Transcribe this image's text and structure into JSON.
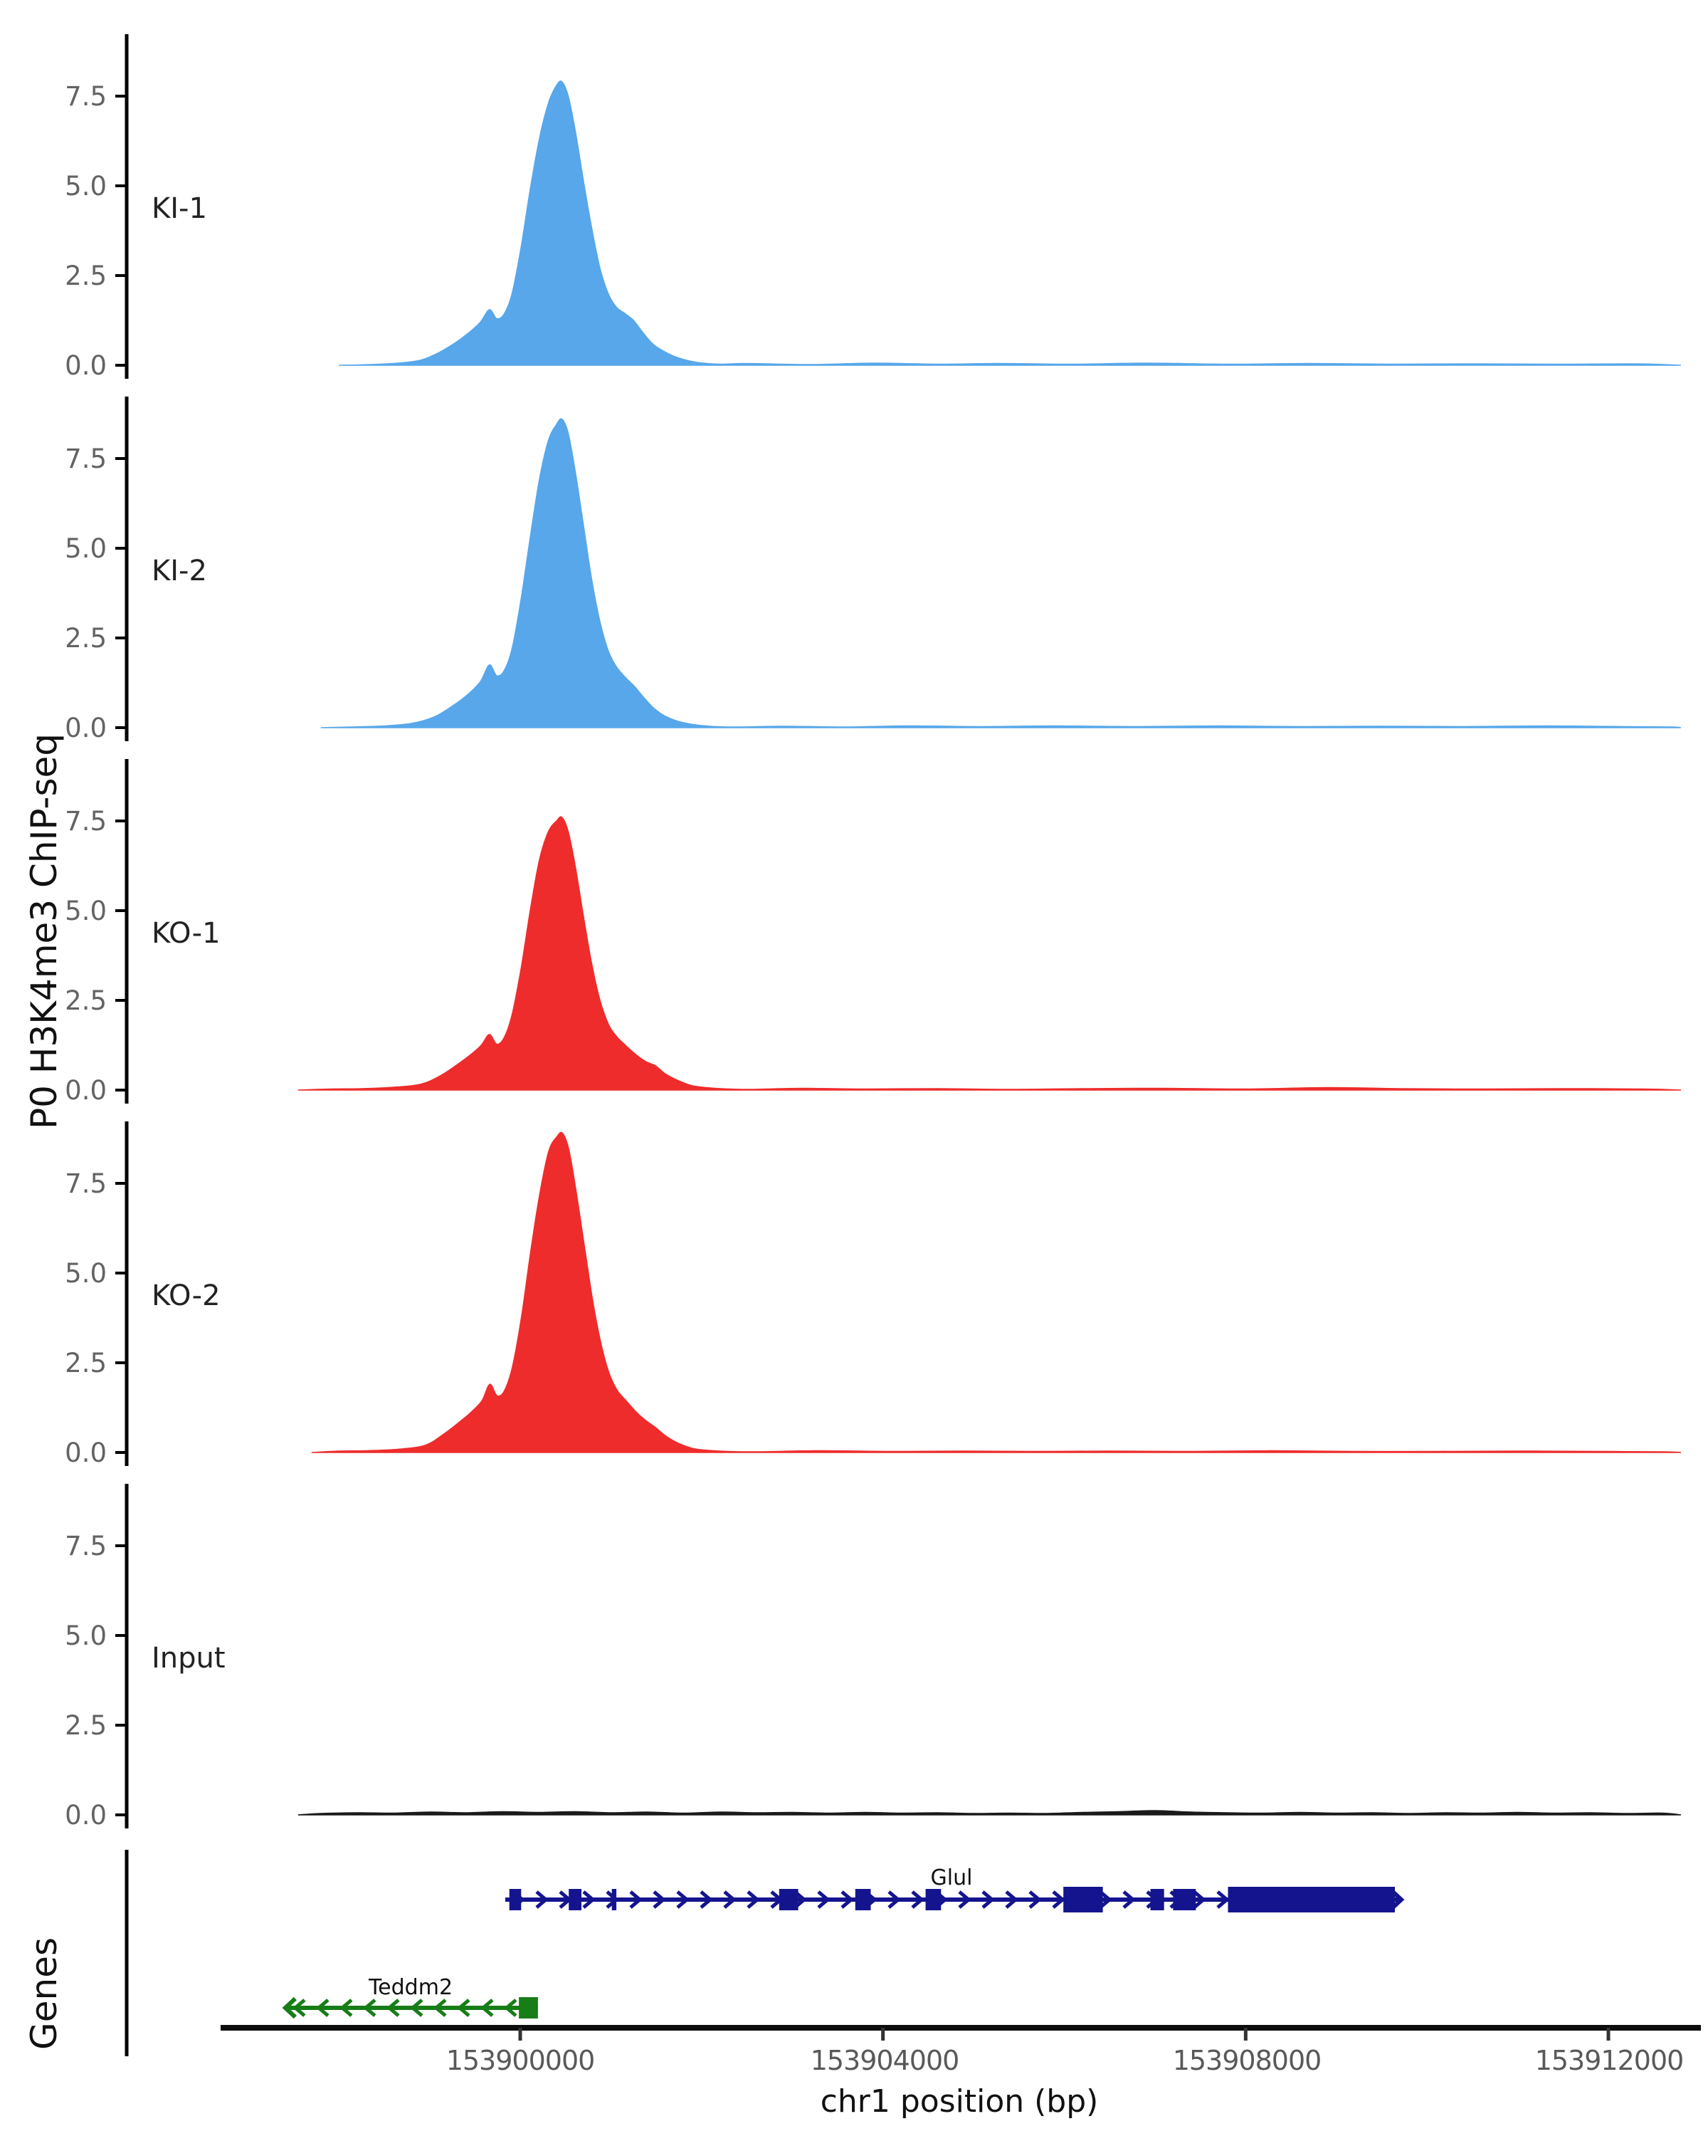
{
  "figure": {
    "ylabel_tracks": "P0 H3K4me3 ChIP-seq",
    "ylabel_genes": "Genes",
    "xlabel": "chr1 position (bp)"
  },
  "chart_data": {
    "type": "area",
    "title": "",
    "xlabel": "chr1 position (bp)",
    "ylabel": "P0 H3K4me3 ChIP-seq",
    "x_axis": {
      "chromosome": "chr1",
      "range_bp": [
        153896700,
        153913050
      ],
      "ticks_bp": [
        153900000,
        153904000,
        153908000,
        153912000
      ],
      "tick_labels": [
        "153900000",
        "153904000",
        "153908000",
        "153912000"
      ]
    },
    "y_axis": {
      "ticks": [
        0.0,
        2.5,
        5.0,
        7.5
      ],
      "tick_labels": [
        "0.0",
        "2.5",
        "5.0",
        "7.5"
      ],
      "ylim": [
        0,
        9.3
      ]
    },
    "colors": {
      "ki_fill": "#57a7ea",
      "ko_fill": "#ee2c2c",
      "input_fill": "#1a1a1a",
      "glul_gene": "#14148f",
      "teddm2_gene": "#177d17",
      "axis": "#000000",
      "tick_text": "#595959"
    },
    "tracks": [
      {
        "label": "KI-1",
        "color": "#57a7ea",
        "peak_summit_bp": 153900460,
        "peak_max": 7.9,
        "profile": [
          [
            153898000,
            0
          ],
          [
            153898350,
            0.02
          ],
          [
            153898650,
            0.06
          ],
          [
            153898900,
            0.14
          ],
          [
            153899100,
            0.35
          ],
          [
            153899280,
            0.62
          ],
          [
            153899430,
            0.9
          ],
          [
            153899560,
            1.2
          ],
          [
            153899660,
            1.55
          ],
          [
            153899740,
            1.3
          ],
          [
            153899820,
            1.42
          ],
          [
            153899910,
            2.0
          ],
          [
            153900010,
            3.3
          ],
          [
            153900110,
            4.9
          ],
          [
            153900210,
            6.3
          ],
          [
            153900310,
            7.3
          ],
          [
            153900400,
            7.8
          ],
          [
            153900460,
            7.9
          ],
          [
            153900530,
            7.5
          ],
          [
            153900610,
            6.5
          ],
          [
            153900700,
            5.1
          ],
          [
            153900790,
            3.8
          ],
          [
            153900880,
            2.7
          ],
          [
            153900970,
            2.0
          ],
          [
            153901060,
            1.62
          ],
          [
            153901150,
            1.45
          ],
          [
            153901250,
            1.25
          ],
          [
            153901350,
            0.92
          ],
          [
            153901460,
            0.6
          ],
          [
            153901590,
            0.38
          ],
          [
            153901750,
            0.2
          ],
          [
            153901950,
            0.08
          ],
          [
            153902200,
            0.03
          ],
          [
            153902500,
            0.05
          ],
          [
            153903200,
            0.02
          ],
          [
            153903900,
            0.06
          ],
          [
            153904600,
            0.03
          ],
          [
            153905300,
            0.05
          ],
          [
            153906100,
            0.03
          ],
          [
            153906900,
            0.06
          ],
          [
            153907800,
            0.03
          ],
          [
            153908700,
            0.05
          ],
          [
            153909600,
            0.03
          ],
          [
            153910500,
            0.04
          ],
          [
            153911400,
            0.03
          ],
          [
            153912300,
            0.04
          ],
          [
            153912800,
            0
          ]
        ]
      },
      {
        "label": "KI-2",
        "color": "#57a7ea",
        "peak_summit_bp": 153900460,
        "peak_max": 8.6,
        "profile": [
          [
            153897800,
            0
          ],
          [
            153898150,
            0.02
          ],
          [
            153898500,
            0.05
          ],
          [
            153898800,
            0.12
          ],
          [
            153899050,
            0.3
          ],
          [
            153899250,
            0.6
          ],
          [
            153899420,
            0.92
          ],
          [
            153899560,
            1.28
          ],
          [
            153899660,
            1.75
          ],
          [
            153899740,
            1.45
          ],
          [
            153899820,
            1.58
          ],
          [
            153899910,
            2.2
          ],
          [
            153900010,
            3.6
          ],
          [
            153900110,
            5.3
          ],
          [
            153900210,
            6.9
          ],
          [
            153900310,
            8.0
          ],
          [
            153900400,
            8.45
          ],
          [
            153900460,
            8.6
          ],
          [
            153900530,
            8.2
          ],
          [
            153900610,
            7.1
          ],
          [
            153900700,
            5.6
          ],
          [
            153900790,
            4.1
          ],
          [
            153900880,
            2.95
          ],
          [
            153900970,
            2.15
          ],
          [
            153901060,
            1.7
          ],
          [
            153901160,
            1.4
          ],
          [
            153901260,
            1.15
          ],
          [
            153901360,
            0.85
          ],
          [
            153901470,
            0.55
          ],
          [
            153901600,
            0.32
          ],
          [
            153901780,
            0.15
          ],
          [
            153902000,
            0.06
          ],
          [
            153902300,
            0.02
          ],
          [
            153902900,
            0.04
          ],
          [
            153903600,
            0.02
          ],
          [
            153904300,
            0.05
          ],
          [
            153905100,
            0.03
          ],
          [
            153905900,
            0.05
          ],
          [
            153906800,
            0.03
          ],
          [
            153907700,
            0.05
          ],
          [
            153908600,
            0.03
          ],
          [
            153909500,
            0.04
          ],
          [
            153910400,
            0.03
          ],
          [
            153911300,
            0.05
          ],
          [
            153912200,
            0.03
          ],
          [
            153912700,
            0.02
          ],
          [
            153912800,
            0
          ]
        ]
      },
      {
        "label": "KO-1",
        "color": "#ee2c2c",
        "peak_summit_bp": 153900460,
        "peak_max": 7.6,
        "profile": [
          [
            153897550,
            0
          ],
          [
            153897900,
            0.03
          ],
          [
            153898250,
            0.04
          ],
          [
            153898600,
            0.08
          ],
          [
            153898900,
            0.16
          ],
          [
            153899120,
            0.4
          ],
          [
            153899300,
            0.7
          ],
          [
            153899450,
            0.98
          ],
          [
            153899570,
            1.25
          ],
          [
            153899660,
            1.55
          ],
          [
            153899740,
            1.28
          ],
          [
            153899820,
            1.45
          ],
          [
            153899910,
            2.1
          ],
          [
            153900010,
            3.4
          ],
          [
            153900110,
            5.0
          ],
          [
            153900210,
            6.4
          ],
          [
            153900310,
            7.2
          ],
          [
            153900400,
            7.5
          ],
          [
            153900460,
            7.6
          ],
          [
            153900530,
            7.2
          ],
          [
            153900610,
            6.2
          ],
          [
            153900700,
            4.8
          ],
          [
            153900790,
            3.5
          ],
          [
            153900880,
            2.5
          ],
          [
            153900970,
            1.85
          ],
          [
            153901060,
            1.5
          ],
          [
            153901160,
            1.25
          ],
          [
            153901270,
            1.0
          ],
          [
            153901380,
            0.8
          ],
          [
            153901490,
            0.68
          ],
          [
            153901600,
            0.45
          ],
          [
            153901730,
            0.28
          ],
          [
            153901900,
            0.12
          ],
          [
            153902150,
            0.05
          ],
          [
            153902500,
            0.02
          ],
          [
            153903100,
            0.05
          ],
          [
            153903800,
            0.03
          ],
          [
            153904600,
            0.04
          ],
          [
            153905400,
            0.02
          ],
          [
            153906200,
            0.04
          ],
          [
            153907100,
            0.05
          ],
          [
            153908000,
            0.03
          ],
          [
            153908900,
            0.07
          ],
          [
            153909700,
            0.04
          ],
          [
            153910600,
            0.03
          ],
          [
            153911500,
            0.04
          ],
          [
            153912400,
            0.03
          ],
          [
            153912800,
            0
          ]
        ]
      },
      {
        "label": "KO-2",
        "color": "#ee2c2c",
        "peak_summit_bp": 153900465,
        "peak_max": 8.9,
        "profile": [
          [
            153897700,
            0
          ],
          [
            153898000,
            0.04
          ],
          [
            153898300,
            0.05
          ],
          [
            153898650,
            0.09
          ],
          [
            153898950,
            0.2
          ],
          [
            153899150,
            0.5
          ],
          [
            153899330,
            0.85
          ],
          [
            153899470,
            1.15
          ],
          [
            153899580,
            1.45
          ],
          [
            153899665,
            1.9
          ],
          [
            153899745,
            1.58
          ],
          [
            153899825,
            1.72
          ],
          [
            153899915,
            2.4
          ],
          [
            153900015,
            3.8
          ],
          [
            153900115,
            5.6
          ],
          [
            153900215,
            7.2
          ],
          [
            153900315,
            8.4
          ],
          [
            153900405,
            8.8
          ],
          [
            153900465,
            8.9
          ],
          [
            153900535,
            8.45
          ],
          [
            153900615,
            7.3
          ],
          [
            153900705,
            5.8
          ],
          [
            153900795,
            4.3
          ],
          [
            153900885,
            3.1
          ],
          [
            153900975,
            2.25
          ],
          [
            153901065,
            1.75
          ],
          [
            153901165,
            1.45
          ],
          [
            153901270,
            1.15
          ],
          [
            153901380,
            0.9
          ],
          [
            153901490,
            0.7
          ],
          [
            153901610,
            0.45
          ],
          [
            153901750,
            0.25
          ],
          [
            153901930,
            0.1
          ],
          [
            153902200,
            0.04
          ],
          [
            153902600,
            0.02
          ],
          [
            153903300,
            0.05
          ],
          [
            153904100,
            0.03
          ],
          [
            153904900,
            0.04
          ],
          [
            153905700,
            0.03
          ],
          [
            153906500,
            0.04
          ],
          [
            153907400,
            0.03
          ],
          [
            153908300,
            0.05
          ],
          [
            153909200,
            0.03
          ],
          [
            153910100,
            0.03
          ],
          [
            153911000,
            0.04
          ],
          [
            153911900,
            0.03
          ],
          [
            153912600,
            0.02
          ],
          [
            153912800,
            0
          ]
        ]
      },
      {
        "label": "Input",
        "color": "#1a1a1a",
        "peak_summit_bp": 153907000,
        "peak_max": 0.12,
        "profile": [
          [
            153897550,
            0
          ],
          [
            153897800,
            0.04
          ],
          [
            153898200,
            0.06
          ],
          [
            153898600,
            0.05
          ],
          [
            153899000,
            0.08
          ],
          [
            153899400,
            0.06
          ],
          [
            153899800,
            0.09
          ],
          [
            153900200,
            0.07
          ],
          [
            153900600,
            0.09
          ],
          [
            153901000,
            0.06
          ],
          [
            153901400,
            0.08
          ],
          [
            153901800,
            0.05
          ],
          [
            153902200,
            0.08
          ],
          [
            153902600,
            0.06
          ],
          [
            153903000,
            0.07
          ],
          [
            153903400,
            0.05
          ],
          [
            153903800,
            0.07
          ],
          [
            153904200,
            0.05
          ],
          [
            153904600,
            0.06
          ],
          [
            153905000,
            0.04
          ],
          [
            153905400,
            0.05
          ],
          [
            153905800,
            0.04
          ],
          [
            153906200,
            0.07
          ],
          [
            153906600,
            0.09
          ],
          [
            153907000,
            0.12
          ],
          [
            153907400,
            0.08
          ],
          [
            153907800,
            0.06
          ],
          [
            153908200,
            0.05
          ],
          [
            153908600,
            0.07
          ],
          [
            153909000,
            0.05
          ],
          [
            153909400,
            0.06
          ],
          [
            153909800,
            0.04
          ],
          [
            153910200,
            0.06
          ],
          [
            153910600,
            0.05
          ],
          [
            153911000,
            0.07
          ],
          [
            153911400,
            0.05
          ],
          [
            153911800,
            0.06
          ],
          [
            153912200,
            0.04
          ],
          [
            153912600,
            0.05
          ],
          [
            153912800,
            0
          ]
        ]
      }
    ],
    "genes": [
      {
        "name": "Glul",
        "strand": "+",
        "color": "#14148f",
        "start_bp": 153899835,
        "end_bp": 153909700,
        "exons_bp": [
          [
            153899880,
            153900010
          ],
          [
            153900535,
            153900675
          ],
          [
            153901010,
            153901060
          ],
          [
            153902855,
            153903065
          ],
          [
            153903695,
            153903865
          ],
          [
            153904470,
            153904640
          ],
          [
            153905990,
            153906425,
            "tall"
          ],
          [
            153906950,
            153907100
          ],
          [
            153907200,
            153907450
          ],
          [
            153907805,
            153909645,
            "tall"
          ]
        ]
      },
      {
        "name": "Teddm2",
        "strand": "-",
        "color": "#177d17",
        "start_bp": 153897425,
        "end_bp": 153900195,
        "exons_bp": [
          [
            153899985,
            153900195
          ]
        ]
      }
    ]
  }
}
